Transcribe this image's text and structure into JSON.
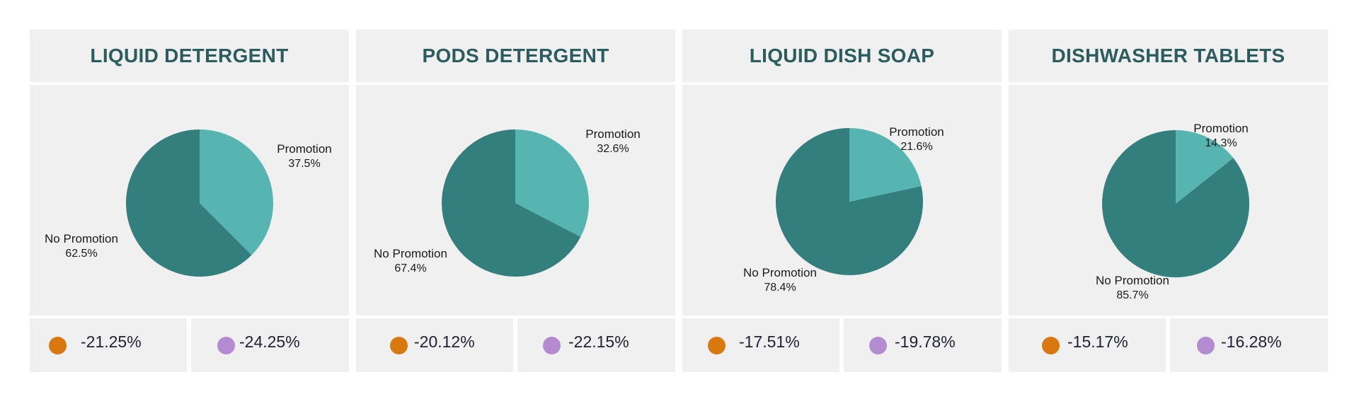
{
  "colors": {
    "promotion": "#57b5b1",
    "no_promotion": "#337f7e",
    "metric_1": "#d9780f",
    "metric_2": "#b48ad0",
    "title": "#2b5c5e"
  },
  "chart_data": [
    {
      "type": "pie",
      "title": "LIQUID DETERGENT",
      "categories": [
        "Promotion",
        "No Promotion"
      ],
      "values": [
        37.5,
        62.5
      ],
      "labels": [
        {
          "name": "Promotion",
          "pct": "37.5%"
        },
        {
          "name": "No Promotion",
          "pct": "62.5%"
        }
      ],
      "metrics": [
        "-21.25%",
        "-24.25%"
      ]
    },
    {
      "type": "pie",
      "title": "PODS DETERGENT",
      "categories": [
        "Promotion",
        "No Promotion"
      ],
      "values": [
        32.6,
        67.4
      ],
      "labels": [
        {
          "name": "Promotion",
          "pct": "32.6%"
        },
        {
          "name": "No Promotion",
          "pct": "67.4%"
        }
      ],
      "metrics": [
        "-20.12%",
        "-22.15%"
      ]
    },
    {
      "type": "pie",
      "title": "LIQUID DISH SOAP",
      "categories": [
        "Promotion",
        "No Promotion"
      ],
      "values": [
        21.6,
        78.4
      ],
      "labels": [
        {
          "name": "Promotion",
          "pct": "21.6%"
        },
        {
          "name": "No Promotion",
          "pct": "78.4%"
        }
      ],
      "metrics": [
        "-17.51%",
        "-19.78%"
      ]
    },
    {
      "type": "pie",
      "title": "DISHWASHER TABLETS",
      "categories": [
        "Promotion",
        "No Promotion"
      ],
      "values": [
        14.3,
        85.7
      ],
      "labels": [
        {
          "name": "Promotion",
          "pct": "14.3%"
        },
        {
          "name": "No Promotion",
          "pct": "85.7%"
        }
      ],
      "metrics": [
        "-15.17%",
        "-16.28%"
      ]
    }
  ]
}
